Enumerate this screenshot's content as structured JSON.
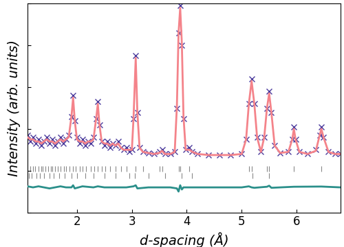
{
  "chart_data": {
    "type": "line",
    "x_label": "d-spacing (Å)",
    "y_label": "Intensity (arb. units)",
    "xlim": [
      1.1,
      6.8
    ],
    "xticks": [
      2,
      3,
      4,
      5,
      6
    ],
    "ylim": [
      0,
      100
    ],
    "yticks": [
      0,
      20,
      40,
      60,
      80,
      100
    ],
    "tick_labels": "x",
    "grid": false,
    "series": [
      {
        "type": "scatter",
        "marker": "x",
        "color": "#4a3a9c",
        "x": [
          1.1,
          1.15,
          1.2,
          1.25,
          1.3,
          1.35,
          1.4,
          1.45,
          1.5,
          1.55,
          1.6,
          1.65,
          1.7,
          1.75,
          1.8,
          1.85,
          1.9,
          1.93,
          1.96,
          2.0,
          2.05,
          2.1,
          2.15,
          2.2,
          2.25,
          2.3,
          2.35,
          2.38,
          2.41,
          2.45,
          2.5,
          2.55,
          2.6,
          2.65,
          2.7,
          2.75,
          2.8,
          2.85,
          2.9,
          2.95,
          3.0,
          3.03,
          3.07,
          3.1,
          3.14,
          3.2,
          3.3,
          3.4,
          3.5,
          3.55,
          3.6,
          3.7,
          3.78,
          3.82,
          3.85,
          3.88,
          3.91,
          3.94,
          3.98,
          4.05,
          4.1,
          4.2,
          4.4,
          4.6,
          4.8,
          5.0,
          5.08,
          5.13,
          5.18,
          5.23,
          5.28,
          5.35,
          5.41,
          5.46,
          5.5,
          5.54,
          5.6,
          5.7,
          5.85,
          5.92,
          5.95,
          5.98,
          6.05,
          6.2,
          6.35,
          6.42,
          6.45,
          6.49,
          6.58,
          6.7,
          6.8
        ],
        "values": [
          37,
          34,
          36,
          33,
          35,
          32,
          34,
          36,
          33,
          35,
          32,
          34,
          36,
          33,
          35,
          37,
          46,
          56,
          44,
          36,
          33,
          35,
          32,
          34,
          33,
          36,
          45,
          53,
          42,
          34,
          32,
          34,
          31,
          33,
          32,
          34,
          31,
          30,
          31,
          29,
          30,
          45,
          75,
          48,
          31,
          29,
          28.5,
          28,
          29,
          30,
          28,
          28,
          29,
          50,
          86,
          99,
          80,
          45,
          30,
          31,
          29,
          28,
          27.5,
          27.5,
          27.5,
          28,
          35,
          52,
          64,
          52,
          36,
          29,
          36,
          50,
          58,
          48,
          32,
          28.5,
          29,
          35,
          41,
          35,
          29,
          28,
          30,
          37,
          41,
          36,
          29,
          28,
          28
        ]
      },
      {
        "type": "line",
        "line_style": "solid",
        "color": "#f4838a",
        "x": [
          1.1,
          1.15,
          1.2,
          1.25,
          1.3,
          1.35,
          1.4,
          1.45,
          1.5,
          1.55,
          1.6,
          1.65,
          1.7,
          1.75,
          1.8,
          1.85,
          1.9,
          1.93,
          1.96,
          2.0,
          2.05,
          2.1,
          2.15,
          2.2,
          2.25,
          2.3,
          2.35,
          2.38,
          2.41,
          2.45,
          2.5,
          2.55,
          2.6,
          2.65,
          2.7,
          2.75,
          2.8,
          2.85,
          2.9,
          2.95,
          3.0,
          3.03,
          3.07,
          3.1,
          3.14,
          3.2,
          3.3,
          3.4,
          3.5,
          3.55,
          3.6,
          3.7,
          3.78,
          3.82,
          3.85,
          3.88,
          3.91,
          3.94,
          3.98,
          4.05,
          4.1,
          4.2,
          4.4,
          4.6,
          4.8,
          5.0,
          5.08,
          5.13,
          5.18,
          5.23,
          5.28,
          5.35,
          5.41,
          5.46,
          5.5,
          5.54,
          5.6,
          5.7,
          5.85,
          5.92,
          5.95,
          5.98,
          6.05,
          6.2,
          6.35,
          6.42,
          6.45,
          6.49,
          6.58,
          6.7,
          6.8
        ],
        "values": [
          36,
          35,
          35,
          34,
          34,
          33,
          34,
          35,
          34,
          34,
          33,
          34,
          35,
          34,
          35,
          36,
          46,
          55,
          44,
          35,
          34,
          34,
          33,
          34,
          34,
          35,
          45,
          52,
          42,
          34,
          33,
          33,
          32,
          33,
          32,
          33,
          31,
          30,
          30,
          30,
          30,
          45,
          74,
          48,
          31,
          29,
          28.5,
          28,
          28.5,
          29.5,
          28,
          28,
          29,
          51,
          86,
          98,
          81,
          46,
          30,
          30,
          29,
          28,
          27.5,
          27.5,
          27.5,
          28,
          35,
          52,
          63,
          52,
          36,
          29,
          36,
          50,
          57,
          48,
          32,
          28.5,
          29,
          35,
          40,
          35,
          29,
          28,
          29.5,
          37,
          40,
          36,
          29,
          28,
          28
        ]
      },
      {
        "type": "line",
        "line_style": "solid",
        "color": "#2a8f8a",
        "x": [
          1.1,
          1.2,
          1.3,
          1.4,
          1.5,
          1.6,
          1.7,
          1.8,
          1.9,
          1.93,
          1.96,
          2.1,
          2.3,
          2.38,
          2.5,
          2.7,
          2.9,
          3.03,
          3.07,
          3.1,
          3.3,
          3.5,
          3.7,
          3.82,
          3.85,
          3.88,
          3.91,
          3.94,
          4.1,
          4.5,
          5.0,
          5.13,
          5.18,
          5.23,
          5.46,
          5.5,
          5.54,
          5.95,
          6.45,
          6.8
        ],
        "values": [
          12.5,
          12,
          12.5,
          12,
          11.5,
          12,
          12.5,
          12,
          12,
          13,
          11.5,
          12.5,
          12,
          12.5,
          12,
          12,
          12,
          12.5,
          13,
          11.5,
          12,
          12,
          12,
          11.5,
          10,
          13,
          11,
          12,
          12,
          12,
          12,
          12.5,
          12,
          11.8,
          12.3,
          12.8,
          11.8,
          12.3,
          12.4,
          12
        ]
      },
      {
        "type": "ticks",
        "marker": "|",
        "color": "#888888",
        "x": [
          1.15,
          1.2,
          1.24,
          1.3,
          1.35,
          1.38,
          1.42,
          1.47,
          1.52,
          1.55,
          1.6,
          1.65,
          1.7,
          1.76,
          1.8,
          1.86,
          1.93,
          1.98,
          2.05,
          2.1,
          2.17,
          2.25,
          2.32,
          2.38,
          2.45,
          2.52,
          2.6,
          2.7,
          2.8,
          2.9,
          3.07,
          3.2,
          3.5,
          3.55,
          3.85,
          3.88,
          4.05,
          5.13,
          5.18,
          5.46,
          5.5,
          5.95,
          6.45
        ],
        "values": [
          21,
          21,
          21,
          21,
          21,
          21,
          21,
          21,
          21,
          21,
          21,
          21,
          21,
          21,
          21,
          21,
          21,
          21,
          21,
          21,
          21,
          21,
          21,
          21,
          21,
          21,
          21,
          21,
          21,
          21,
          21,
          21,
          21,
          21,
          21,
          21,
          21,
          21,
          21,
          21,
          21,
          21,
          21
        ]
      },
      {
        "type": "ticks",
        "marker": "|",
        "color": "#888888",
        "x": [
          1.12,
          1.18,
          1.26,
          1.33,
          1.4,
          1.5,
          1.58,
          1.68,
          1.78,
          1.9,
          2.0,
          2.15,
          2.3,
          2.5,
          2.7,
          2.95,
          3.05,
          3.3,
          3.6,
          3.9,
          4.1,
          5.2,
          5.5
        ],
        "values": [
          17.5,
          17.5,
          17.5,
          17.5,
          17.5,
          17.5,
          17.5,
          17.5,
          17.5,
          17.5,
          17.5,
          17.5,
          17.5,
          17.5,
          17.5,
          17.5,
          17.5,
          17.5,
          17.5,
          17.5,
          17.5,
          17.5,
          17.5
        ]
      }
    ]
  }
}
